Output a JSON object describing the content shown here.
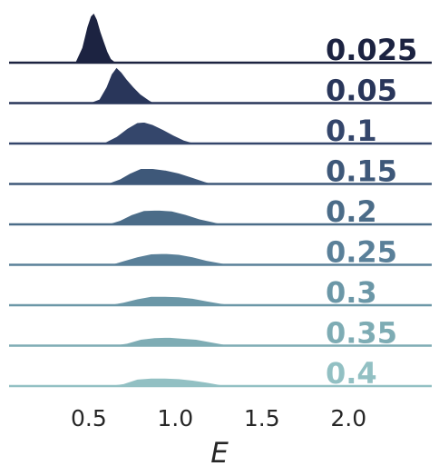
{
  "chart_data": {
    "type": "area",
    "title": "",
    "xlabel": "E",
    "ylabel": "",
    "xlim": [
      0.04,
      2.48
    ],
    "grid": false,
    "x_ticks": [
      "0.5",
      "1.0",
      "1.5",
      "2.0"
    ],
    "x_tick_values": [
      0.5,
      1.0,
      1.5,
      2.0
    ],
    "series": [
      {
        "name": "0.025",
        "color": "#1c2341",
        "x": [
          0.42,
          0.46,
          0.49,
          0.51,
          0.53,
          0.55,
          0.57,
          0.59,
          0.61,
          0.63,
          0.66
        ],
        "y": [
          0.0,
          0.3,
          0.72,
          0.93,
          1.0,
          0.86,
          0.62,
          0.42,
          0.22,
          0.08,
          0.0
        ]
      },
      {
        "name": "0.05",
        "color": "#29365a",
        "x": [
          0.5,
          0.56,
          0.6,
          0.63,
          0.66,
          0.69,
          0.72,
          0.76,
          0.8,
          0.85,
          0.88
        ],
        "y": [
          0.0,
          0.08,
          0.32,
          0.58,
          0.72,
          0.62,
          0.48,
          0.32,
          0.18,
          0.06,
          0.0
        ]
      },
      {
        "name": "0.1",
        "color": "#34466b",
        "x": [
          0.58,
          0.66,
          0.72,
          0.78,
          0.82,
          0.87,
          0.93,
          0.99,
          1.05,
          1.12
        ],
        "y": [
          0.0,
          0.14,
          0.3,
          0.42,
          0.43,
          0.38,
          0.28,
          0.17,
          0.07,
          0.0
        ]
      },
      {
        "name": "0.15",
        "color": "#3e5879",
        "x": [
          0.6,
          0.68,
          0.74,
          0.8,
          0.87,
          0.94,
          1.02,
          1.1,
          1.17,
          1.22
        ],
        "y": [
          0.0,
          0.1,
          0.22,
          0.31,
          0.31,
          0.28,
          0.22,
          0.13,
          0.05,
          0.0
        ]
      },
      {
        "name": "0.2",
        "color": "#4b6c88",
        "x": [
          0.6,
          0.68,
          0.75,
          0.82,
          0.9,
          0.98,
          1.06,
          1.14,
          1.22,
          1.28
        ],
        "y": [
          0.0,
          0.08,
          0.2,
          0.28,
          0.29,
          0.27,
          0.2,
          0.11,
          0.05,
          0.0
        ]
      },
      {
        "name": "0.25",
        "color": "#5a8099",
        "x": [
          0.62,
          0.7,
          0.78,
          0.86,
          0.94,
          1.02,
          1.1,
          1.18,
          1.26,
          1.32
        ],
        "y": [
          0.0,
          0.08,
          0.16,
          0.22,
          0.23,
          0.21,
          0.16,
          0.09,
          0.04,
          0.0
        ]
      },
      {
        "name": "0.3",
        "color": "#6b97a7",
        "x": [
          0.6,
          0.7,
          0.78,
          0.86,
          0.94,
          1.02,
          1.1,
          1.18,
          1.26,
          1.34
        ],
        "y": [
          0.0,
          0.06,
          0.13,
          0.18,
          0.18,
          0.17,
          0.14,
          0.09,
          0.04,
          0.0
        ]
      },
      {
        "name": "0.35",
        "color": "#7eacb4",
        "x": [
          0.62,
          0.72,
          0.8,
          0.88,
          0.96,
          1.04,
          1.12,
          1.2,
          1.28,
          1.36
        ],
        "y": [
          0.0,
          0.05,
          0.13,
          0.16,
          0.17,
          0.15,
          0.13,
          0.08,
          0.03,
          0.0
        ]
      },
      {
        "name": "0.4",
        "color": "#92c0c3",
        "x": [
          0.6,
          0.7,
          0.78,
          0.86,
          0.94,
          1.02,
          1.1,
          1.18,
          1.26,
          1.34
        ],
        "y": [
          0.0,
          0.05,
          0.14,
          0.16,
          0.16,
          0.15,
          0.12,
          0.08,
          0.03,
          0.0
        ]
      }
    ]
  }
}
